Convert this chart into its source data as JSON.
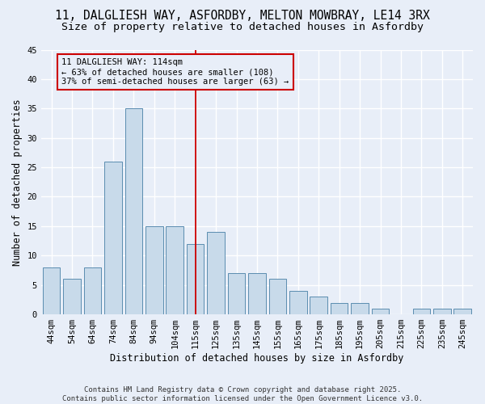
{
  "title_line1": "11, DALGLIESH WAY, ASFORDBY, MELTON MOWBRAY, LE14 3RX",
  "title_line2": "Size of property relative to detached houses in Asfordby",
  "xlabel": "Distribution of detached houses by size in Asfordby",
  "ylabel": "Number of detached properties",
  "xlim_labels": [
    "44sqm",
    "54sqm",
    "64sqm",
    "74sqm",
    "84sqm",
    "94sqm",
    "104sqm",
    "115sqm",
    "125sqm",
    "135sqm",
    "145sqm",
    "155sqm",
    "165sqm",
    "175sqm",
    "185sqm",
    "195sqm",
    "205sqm",
    "215sqm",
    "225sqm",
    "235sqm",
    "245sqm"
  ],
  "full_values": [
    8,
    6,
    8,
    26,
    35,
    15,
    15,
    12,
    14,
    7,
    7,
    6,
    4,
    3,
    2,
    2,
    1,
    0,
    1,
    1,
    1
  ],
  "ylim": [
    0,
    45
  ],
  "yticks": [
    0,
    5,
    10,
    15,
    20,
    25,
    30,
    35,
    40,
    45
  ],
  "bar_color": "#c8daea",
  "bar_edge_color": "#5b8db0",
  "background_color": "#e8eef8",
  "grid_color": "#ffffff",
  "vline_label": "115sqm",
  "vline_color": "#cc0000",
  "annotation_text": "11 DALGLIESH WAY: 114sqm\n← 63% of detached houses are smaller (108)\n37% of semi-detached houses are larger (63) →",
  "footer_text": "Contains HM Land Registry data © Crown copyright and database right 2025.\nContains public sector information licensed under the Open Government Licence v3.0.",
  "title_fontsize": 10.5,
  "subtitle_fontsize": 9.5,
  "axis_label_fontsize": 8.5,
  "tick_fontsize": 7.5,
  "annotation_fontsize": 7.5,
  "footer_fontsize": 6.5
}
